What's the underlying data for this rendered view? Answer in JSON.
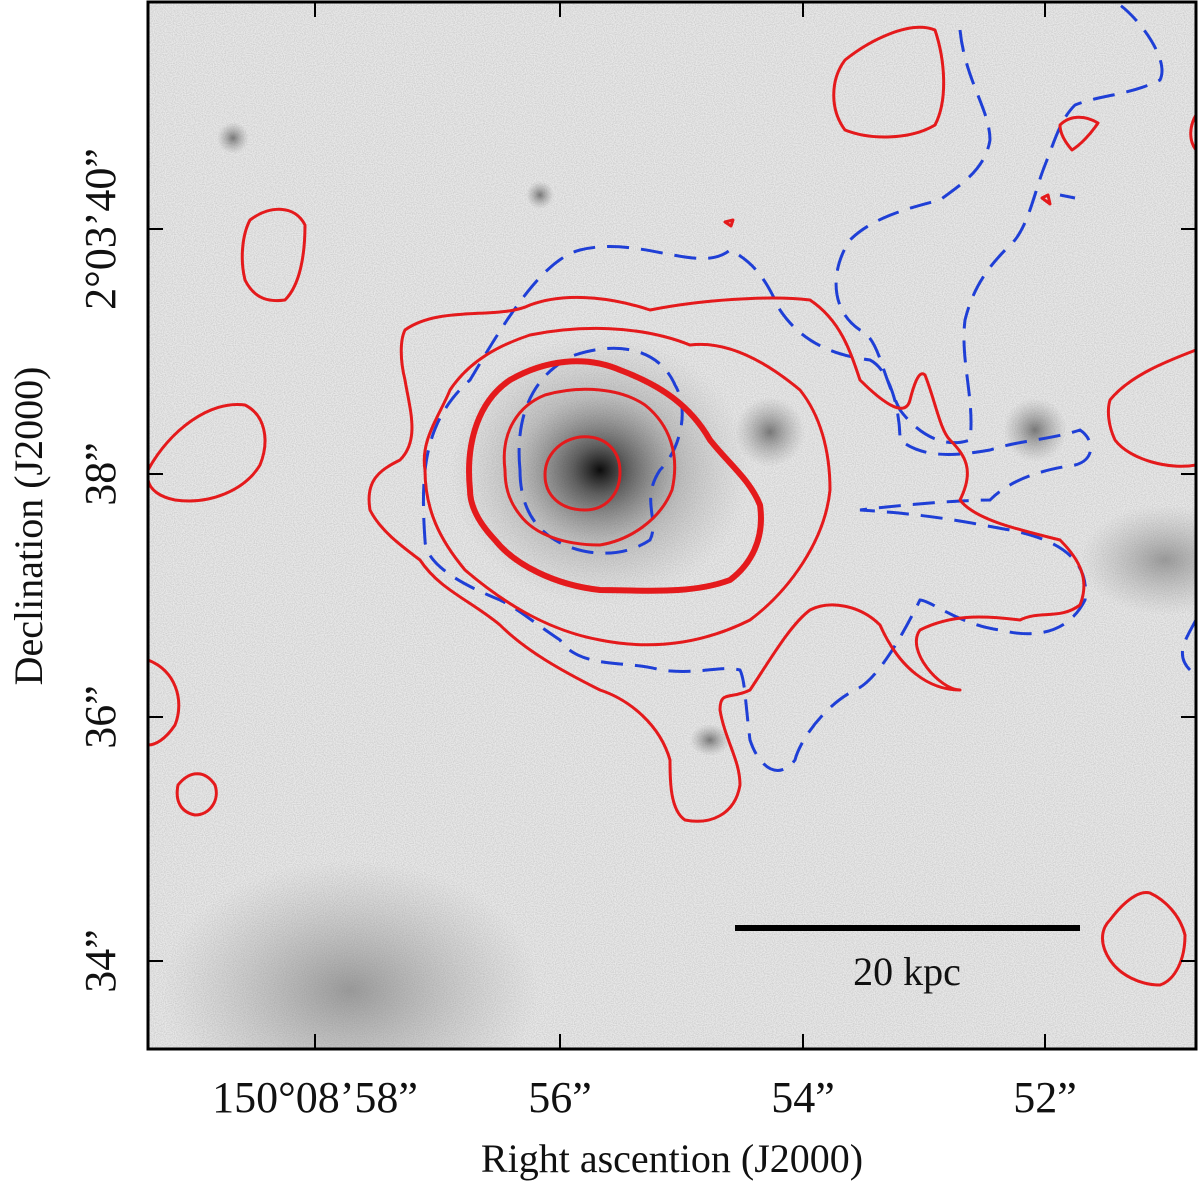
{
  "figure": {
    "x_axis_title": "Right ascention (J2000)",
    "y_axis_title": "Declination (J2000)",
    "x_tick_labels": [
      "150°08’58”",
      "56”",
      "54”",
      "52”"
    ],
    "y_tick_labels": [
      "2°03’40”",
      "38”",
      "36”",
      "34”"
    ],
    "scale_bar_label": "20 kpc",
    "colors": {
      "solid_contour": "#e41a1c",
      "dashed_contour": "#1f3fd6",
      "background_image": "grayscale",
      "scale_bar": "#000000"
    }
  }
}
